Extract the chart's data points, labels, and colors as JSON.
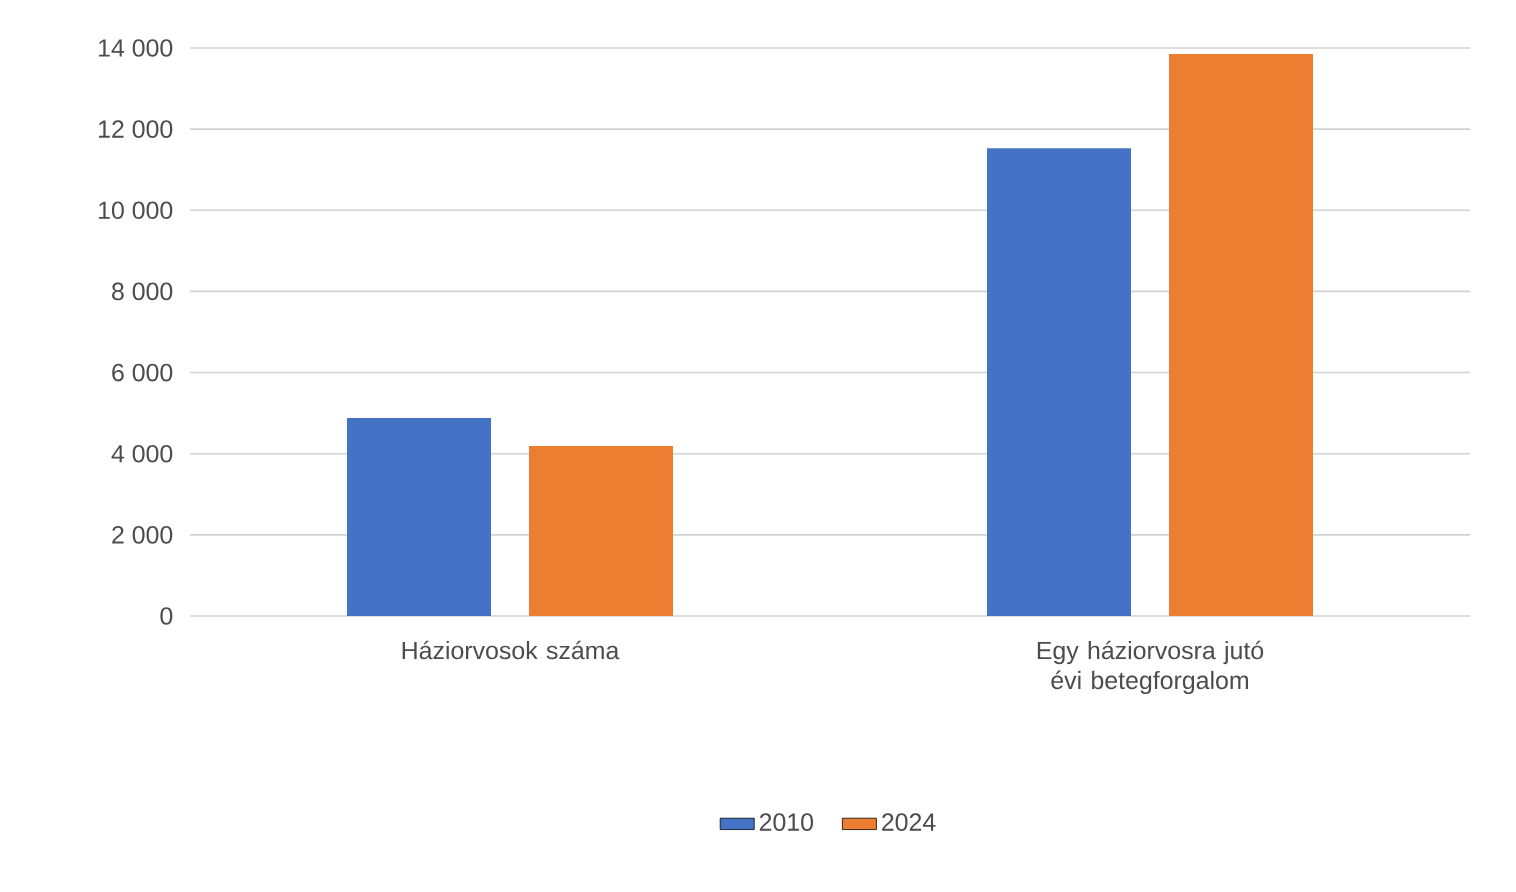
{
  "chart_data": {
    "type": "bar",
    "categories": [
      "Háziorvosok száma",
      "Egy háziorvosra jutó évi betegforgalom"
    ],
    "series": [
      {
        "name": "2010",
        "color": "#4472c4",
        "values": [
          4880,
          11530
        ]
      },
      {
        "name": "2024",
        "color": "#ed7d31",
        "values": [
          4190,
          13850
        ]
      }
    ],
    "ylim": [
      0,
      14000
    ],
    "yticks": [
      {
        "value": 0,
        "label": "0"
      },
      {
        "value": 2000,
        "label": "2 000"
      },
      {
        "value": 4000,
        "label": "4 000"
      },
      {
        "value": 6000,
        "label": "6 000"
      },
      {
        "value": 8000,
        "label": "8 000"
      },
      {
        "value": 10000,
        "label": "10 000"
      },
      {
        "value": 12000,
        "label": "12 000"
      },
      {
        "value": 14000,
        "label": "14 000"
      }
    ],
    "grid": "y",
    "legend": "bottom"
  }
}
